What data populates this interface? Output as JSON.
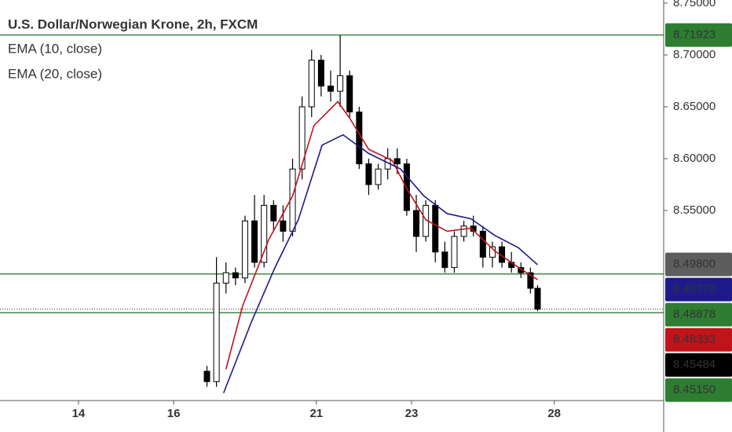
{
  "chart_data": {
    "type": "candlestick",
    "title": "U.S. Dollar/Norwegian Krone, 2h, FXCM",
    "x": [
      2.7,
      2.9,
      3.1,
      3.3,
      3.5,
      3.7,
      3.9,
      4.1,
      4.3,
      4.5,
      4.7,
      4.9,
      5.1,
      5.3,
      5.5,
      5.7,
      5.9,
      6.1,
      6.3,
      6.5,
      6.7,
      6.9,
      7.1,
      7.3,
      7.5,
      7.7,
      7.9,
      8.1,
      8.3,
      8.5,
      8.7,
      8.9,
      9.1,
      9.3,
      9.5,
      9.65
    ],
    "open": [
      8.395,
      8.385,
      8.48,
      8.49,
      8.485,
      8.54,
      8.5,
      8.555,
      8.54,
      8.53,
      8.59,
      8.65,
      8.695,
      8.67,
      8.665,
      8.68,
      8.645,
      8.595,
      8.575,
      8.59,
      8.6,
      8.595,
      8.55,
      8.525,
      8.555,
      8.51,
      8.495,
      8.525,
      8.535,
      8.53,
      8.505,
      8.515,
      8.5,
      8.495,
      8.49,
      8.475
    ],
    "high": [
      8.4,
      8.505,
      8.5,
      8.495,
      8.545,
      8.565,
      8.565,
      8.56,
      8.555,
      8.6,
      8.66,
      8.705,
      8.7,
      8.685,
      8.71923,
      8.685,
      8.65,
      8.6,
      8.595,
      8.61,
      8.61,
      8.6,
      8.565,
      8.56,
      8.56,
      8.52,
      8.53,
      8.54,
      8.545,
      8.535,
      8.52,
      8.52,
      8.51,
      8.5,
      8.495,
      8.478
    ],
    "low": [
      8.38,
      8.38,
      8.47,
      8.478,
      8.48,
      8.495,
      8.495,
      8.53,
      8.52,
      8.525,
      8.58,
      8.64,
      8.66,
      8.655,
      8.65,
      8.64,
      8.59,
      8.565,
      8.57,
      8.58,
      8.585,
      8.545,
      8.51,
      8.52,
      8.5,
      8.49,
      8.49,
      8.52,
      8.525,
      8.495,
      8.495,
      8.495,
      8.49,
      8.485,
      8.47,
      8.453
    ],
    "close": [
      8.385,
      8.48,
      8.49,
      8.485,
      8.54,
      8.5,
      8.555,
      8.54,
      8.53,
      8.59,
      8.65,
      8.695,
      8.67,
      8.665,
      8.68,
      8.645,
      8.595,
      8.575,
      8.59,
      8.6,
      8.595,
      8.55,
      8.525,
      8.555,
      8.51,
      8.495,
      8.525,
      8.535,
      8.53,
      8.505,
      8.515,
      8.5,
      8.495,
      8.49,
      8.475,
      8.45484
    ],
    "series": [
      {
        "name": "EMA (10, close)",
        "color": "#c0141b",
        "x": [
          3.1,
          3.45,
          4.0,
          4.5,
          4.95,
          5.45,
          5.7,
          6.1,
          6.6,
          6.9,
          7.3,
          7.75,
          8.25,
          8.75,
          9.25,
          9.65
        ],
        "values": [
          8.397,
          8.458,
          8.522,
          8.564,
          8.632,
          8.655,
          8.639,
          8.609,
          8.598,
          8.571,
          8.541,
          8.53,
          8.533,
          8.511,
          8.495,
          8.48333
        ]
      },
      {
        "name": "EMA (20, close)",
        "color": "#1e1a8c",
        "x": [
          3.05,
          3.63,
          4.13,
          4.62,
          5.12,
          5.56,
          6.1,
          6.77,
          7.26,
          7.75,
          8.25,
          8.75,
          9.25,
          9.65
        ],
        "values": [
          8.374,
          8.442,
          8.495,
          8.541,
          8.613,
          8.623,
          8.605,
          8.59,
          8.564,
          8.547,
          8.542,
          8.526,
          8.514,
          8.4977
        ]
      }
    ],
    "xlim": [
      -1.65,
      12.3
    ],
    "xticks": [
      {
        "value": 0,
        "label": "14"
      },
      {
        "value": 2,
        "label": "16"
      },
      {
        "value": 5,
        "label": "21"
      },
      {
        "value": 7,
        "label": "23"
      },
      {
        "value": 10,
        "label": "28"
      }
    ],
    "ylim": [
      8.3667,
      8.753
    ],
    "yticks": [
      {
        "value": 8.75,
        "label": "8.75000"
      },
      {
        "value": 8.7,
        "label": "8.70000"
      },
      {
        "value": 8.65,
        "label": "8.65000"
      },
      {
        "value": 8.6,
        "label": "8.60000"
      },
      {
        "value": 8.55,
        "label": "8.55000"
      }
    ],
    "price_labels": [
      {
        "value": 8.71923,
        "label": "8.71923",
        "color": "#2e7d32",
        "line": "solid"
      },
      {
        "value": 8.498,
        "label": "8.49800",
        "color": "#5d5d5d"
      },
      {
        "value": 8.4977,
        "label": "8.49770",
        "color": "#1e1a8c"
      },
      {
        "value": 8.48878,
        "label": "8.48878",
        "color": "#2e7d32",
        "line": "solid"
      },
      {
        "value": 8.48333,
        "label": "8.48333",
        "color": "#c0141b"
      },
      {
        "value": 8.45484,
        "label": "8.45484",
        "color": "#000000",
        "line": "dotted"
      },
      {
        "value": 8.4515,
        "label": "8.45150",
        "color": "#2e7d32",
        "line": "solid"
      }
    ],
    "up_color": "#ffffff",
    "down_color": "#000000"
  }
}
